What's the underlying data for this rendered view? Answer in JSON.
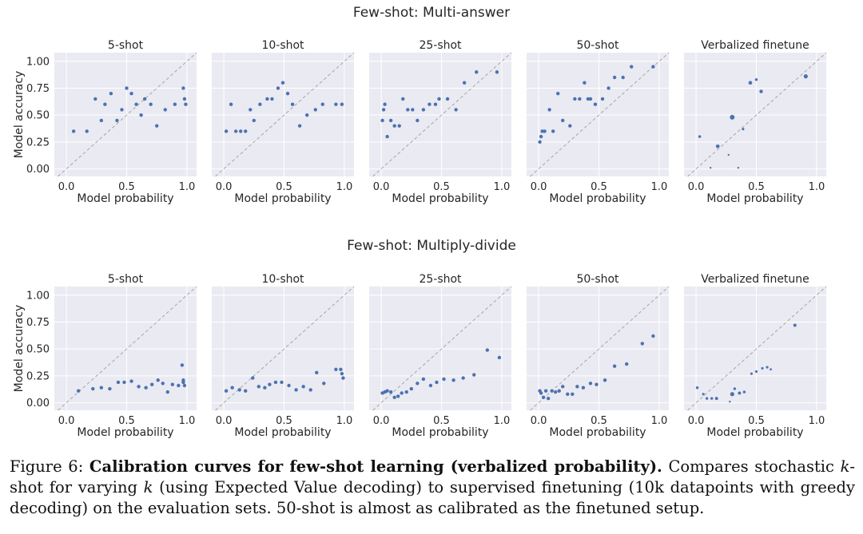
{
  "caption": {
    "figure_label": "Figure 6:",
    "bold_title": "Calibration curves for few-shot learning (verbalized probability).",
    "body_start": "Compares stochastic",
    "k": "k",
    "body_rest": "-shot for varying",
    "k2": "k",
    "body_end": "(using Expected Value decoding) to supervised finetuning (10k datapoints with greedy decoding) on the evaluation sets. 50-shot is almost as calibrated as the finetuned setup."
  },
  "colors": {
    "point": "#4c72b0",
    "panel_bg": "#eaeaf2",
    "diagonal": "#a6a6a6"
  },
  "chart_data": [
    {
      "type": "scatter",
      "section_title": "Few-shot: Multi-answer",
      "xlabel": "Model probability",
      "ylabel": "Model accuracy",
      "xlim": [
        -0.1,
        1.08
      ],
      "ylim": [
        -0.07,
        1.08
      ],
      "xticks": [
        "0.0",
        "0.5",
        "1.0"
      ],
      "yticks": [
        "0.00",
        "0.25",
        "0.50",
        "0.75",
        "1.00"
      ],
      "panels": [
        {
          "title": "5-shot",
          "x": [
            0.06,
            0.17,
            0.24,
            0.29,
            0.32,
            0.37,
            0.42,
            0.46,
            0.5,
            0.54,
            0.58,
            0.62,
            0.65,
            0.7,
            0.75,
            0.82,
            0.9,
            0.97,
            0.98,
            0.99
          ],
          "y": [
            0.35,
            0.35,
            0.65,
            0.45,
            0.6,
            0.7,
            0.45,
            0.55,
            0.75,
            0.7,
            0.6,
            0.5,
            0.65,
            0.6,
            0.4,
            0.55,
            0.6,
            0.75,
            0.65,
            0.6
          ],
          "size": [
            1,
            1,
            1,
            1,
            1,
            1,
            1,
            1,
            1,
            1,
            1,
            1,
            1,
            1,
            1,
            1,
            1,
            1,
            1,
            1
          ]
        },
        {
          "title": "10-shot",
          "x": [
            0.02,
            0.06,
            0.1,
            0.14,
            0.18,
            0.22,
            0.25,
            0.3,
            0.36,
            0.4,
            0.45,
            0.49,
            0.53,
            0.57,
            0.63,
            0.69,
            0.76,
            0.82,
            0.93,
            0.98
          ],
          "y": [
            0.35,
            0.6,
            0.35,
            0.35,
            0.35,
            0.55,
            0.45,
            0.6,
            0.65,
            0.65,
            0.75,
            0.8,
            0.7,
            0.6,
            0.4,
            0.5,
            0.55,
            0.6,
            0.6,
            0.6
          ],
          "size": [
            1,
            1,
            1,
            1,
            1,
            1,
            1,
            1,
            1,
            1,
            1,
            1,
            1,
            1,
            1,
            1,
            1,
            1,
            1,
            1
          ]
        },
        {
          "title": "25-shot",
          "x": [
            0.01,
            0.02,
            0.03,
            0.05,
            0.08,
            0.11,
            0.15,
            0.18,
            0.22,
            0.26,
            0.3,
            0.35,
            0.4,
            0.45,
            0.48,
            0.55,
            0.62,
            0.69,
            0.79,
            0.96
          ],
          "y": [
            0.45,
            0.55,
            0.6,
            0.3,
            0.45,
            0.4,
            0.4,
            0.65,
            0.55,
            0.55,
            0.45,
            0.55,
            0.6,
            0.6,
            0.65,
            0.65,
            0.55,
            0.8,
            0.9,
            0.9
          ],
          "size": [
            1,
            1,
            1,
            1,
            1,
            1,
            1,
            1,
            1,
            1,
            1,
            1,
            1,
            1,
            1,
            1,
            1,
            1,
            1,
            1
          ]
        },
        {
          "title": "50-shot",
          "x": [
            0.01,
            0.02,
            0.03,
            0.05,
            0.09,
            0.12,
            0.16,
            0.2,
            0.26,
            0.3,
            0.34,
            0.38,
            0.41,
            0.43,
            0.47,
            0.53,
            0.58,
            0.63,
            0.7,
            0.77,
            0.95
          ],
          "y": [
            0.25,
            0.3,
            0.35,
            0.35,
            0.55,
            0.35,
            0.7,
            0.45,
            0.4,
            0.65,
            0.65,
            0.8,
            0.65,
            0.65,
            0.6,
            0.65,
            0.75,
            0.85,
            0.85,
            0.95,
            0.95
          ],
          "size": [
            1,
            1,
            1,
            1,
            1,
            1,
            1,
            1,
            1,
            1,
            1,
            1,
            1,
            1,
            1,
            1,
            1,
            1,
            1,
            1,
            1
          ]
        },
        {
          "title": "Verbalized finetune",
          "x": [
            0.03,
            0.12,
            0.18,
            0.27,
            0.3,
            0.35,
            0.39,
            0.45,
            0.5,
            0.54,
            0.91
          ],
          "y": [
            0.3,
            0.01,
            0.21,
            0.13,
            0.48,
            0.01,
            0.37,
            0.8,
            0.83,
            0.72,
            0.86
          ],
          "size": [
            0.6,
            0.3,
            1.1,
            0.3,
            1.8,
            0.3,
            0.5,
            1.1,
            0.6,
            1.0,
            1.4
          ]
        }
      ]
    },
    {
      "type": "scatter",
      "section_title": "Few-shot: Multiply-divide",
      "xlabel": "Model probability",
      "ylabel": "Model accuracy",
      "xlim": [
        -0.1,
        1.08
      ],
      "ylim": [
        -0.07,
        1.08
      ],
      "xticks": [
        "0.0",
        "0.5",
        "1.0"
      ],
      "yticks": [
        "0.00",
        "0.25",
        "0.50",
        "0.75",
        "1.00"
      ],
      "panels": [
        {
          "title": "5-shot",
          "x": [
            0.1,
            0.22,
            0.29,
            0.36,
            0.43,
            0.48,
            0.54,
            0.6,
            0.66,
            0.71,
            0.76,
            0.8,
            0.84,
            0.88,
            0.93,
            0.96,
            0.97,
            0.97,
            0.98
          ],
          "y": [
            0.11,
            0.13,
            0.14,
            0.13,
            0.19,
            0.19,
            0.2,
            0.15,
            0.14,
            0.17,
            0.21,
            0.18,
            0.1,
            0.17,
            0.16,
            0.35,
            0.21,
            0.19,
            0.16
          ],
          "size": [
            1,
            1,
            1,
            1,
            1,
            1,
            1,
            1,
            1,
            1,
            1,
            1,
            1,
            1,
            1,
            1,
            1,
            1,
            1
          ]
        },
        {
          "title": "10-shot",
          "x": [
            0.02,
            0.07,
            0.13,
            0.18,
            0.24,
            0.29,
            0.34,
            0.38,
            0.43,
            0.48,
            0.54,
            0.6,
            0.66,
            0.72,
            0.77,
            0.83,
            0.93,
            0.97,
            0.98,
            0.99
          ],
          "y": [
            0.11,
            0.14,
            0.12,
            0.11,
            0.23,
            0.15,
            0.14,
            0.17,
            0.19,
            0.19,
            0.16,
            0.12,
            0.15,
            0.12,
            0.28,
            0.18,
            0.31,
            0.31,
            0.27,
            0.23
          ],
          "size": [
            1,
            1,
            1,
            1,
            1,
            1,
            1,
            1,
            1,
            1,
            1,
            1,
            1,
            1,
            1,
            1,
            1,
            1,
            1,
            1
          ]
        },
        {
          "title": "25-shot",
          "x": [
            0.01,
            0.03,
            0.05,
            0.08,
            0.11,
            0.14,
            0.17,
            0.21,
            0.25,
            0.3,
            0.35,
            0.41,
            0.46,
            0.52,
            0.6,
            0.68,
            0.77,
            0.88,
            0.98
          ],
          "y": [
            0.09,
            0.1,
            0.11,
            0.1,
            0.05,
            0.06,
            0.09,
            0.1,
            0.13,
            0.18,
            0.22,
            0.16,
            0.19,
            0.22,
            0.21,
            0.23,
            0.26,
            0.49,
            0.42
          ],
          "size": [
            1,
            1,
            1,
            1,
            1,
            1,
            1,
            1,
            1,
            1,
            1,
            1,
            1,
            1,
            1,
            1,
            1,
            1,
            1
          ]
        },
        {
          "title": "50-shot",
          "x": [
            0.01,
            0.02,
            0.04,
            0.06,
            0.08,
            0.11,
            0.14,
            0.17,
            0.2,
            0.24,
            0.28,
            0.32,
            0.37,
            0.43,
            0.48,
            0.55,
            0.63,
            0.73,
            0.86,
            0.95
          ],
          "y": [
            0.11,
            0.09,
            0.05,
            0.11,
            0.04,
            0.11,
            0.1,
            0.11,
            0.15,
            0.08,
            0.08,
            0.15,
            0.14,
            0.18,
            0.17,
            0.21,
            0.34,
            0.36,
            0.55,
            0.62
          ],
          "size": [
            1,
            1,
            1,
            1,
            1,
            1,
            1,
            1,
            1,
            1,
            1,
            1,
            1,
            1,
            1,
            1,
            1,
            1,
            1,
            1
          ]
        },
        {
          "title": "Verbalized finetune",
          "x": [
            0.01,
            0.06,
            0.09,
            0.13,
            0.17,
            0.28,
            0.3,
            0.32,
            0.36,
            0.4,
            0.46,
            0.5,
            0.55,
            0.59,
            0.62,
            0.82
          ],
          "y": [
            0.14,
            0.08,
            0.04,
            0.04,
            0.04,
            0.01,
            0.08,
            0.13,
            0.09,
            0.1,
            0.27,
            0.29,
            0.32,
            0.33,
            0.31,
            0.72
          ],
          "size": [
            0.6,
            0.5,
            0.6,
            0.6,
            0.8,
            0.3,
            1.4,
            0.6,
            0.8,
            0.6,
            0.5,
            0.5,
            0.5,
            0.5,
            0.4,
            0.8
          ]
        }
      ]
    }
  ]
}
